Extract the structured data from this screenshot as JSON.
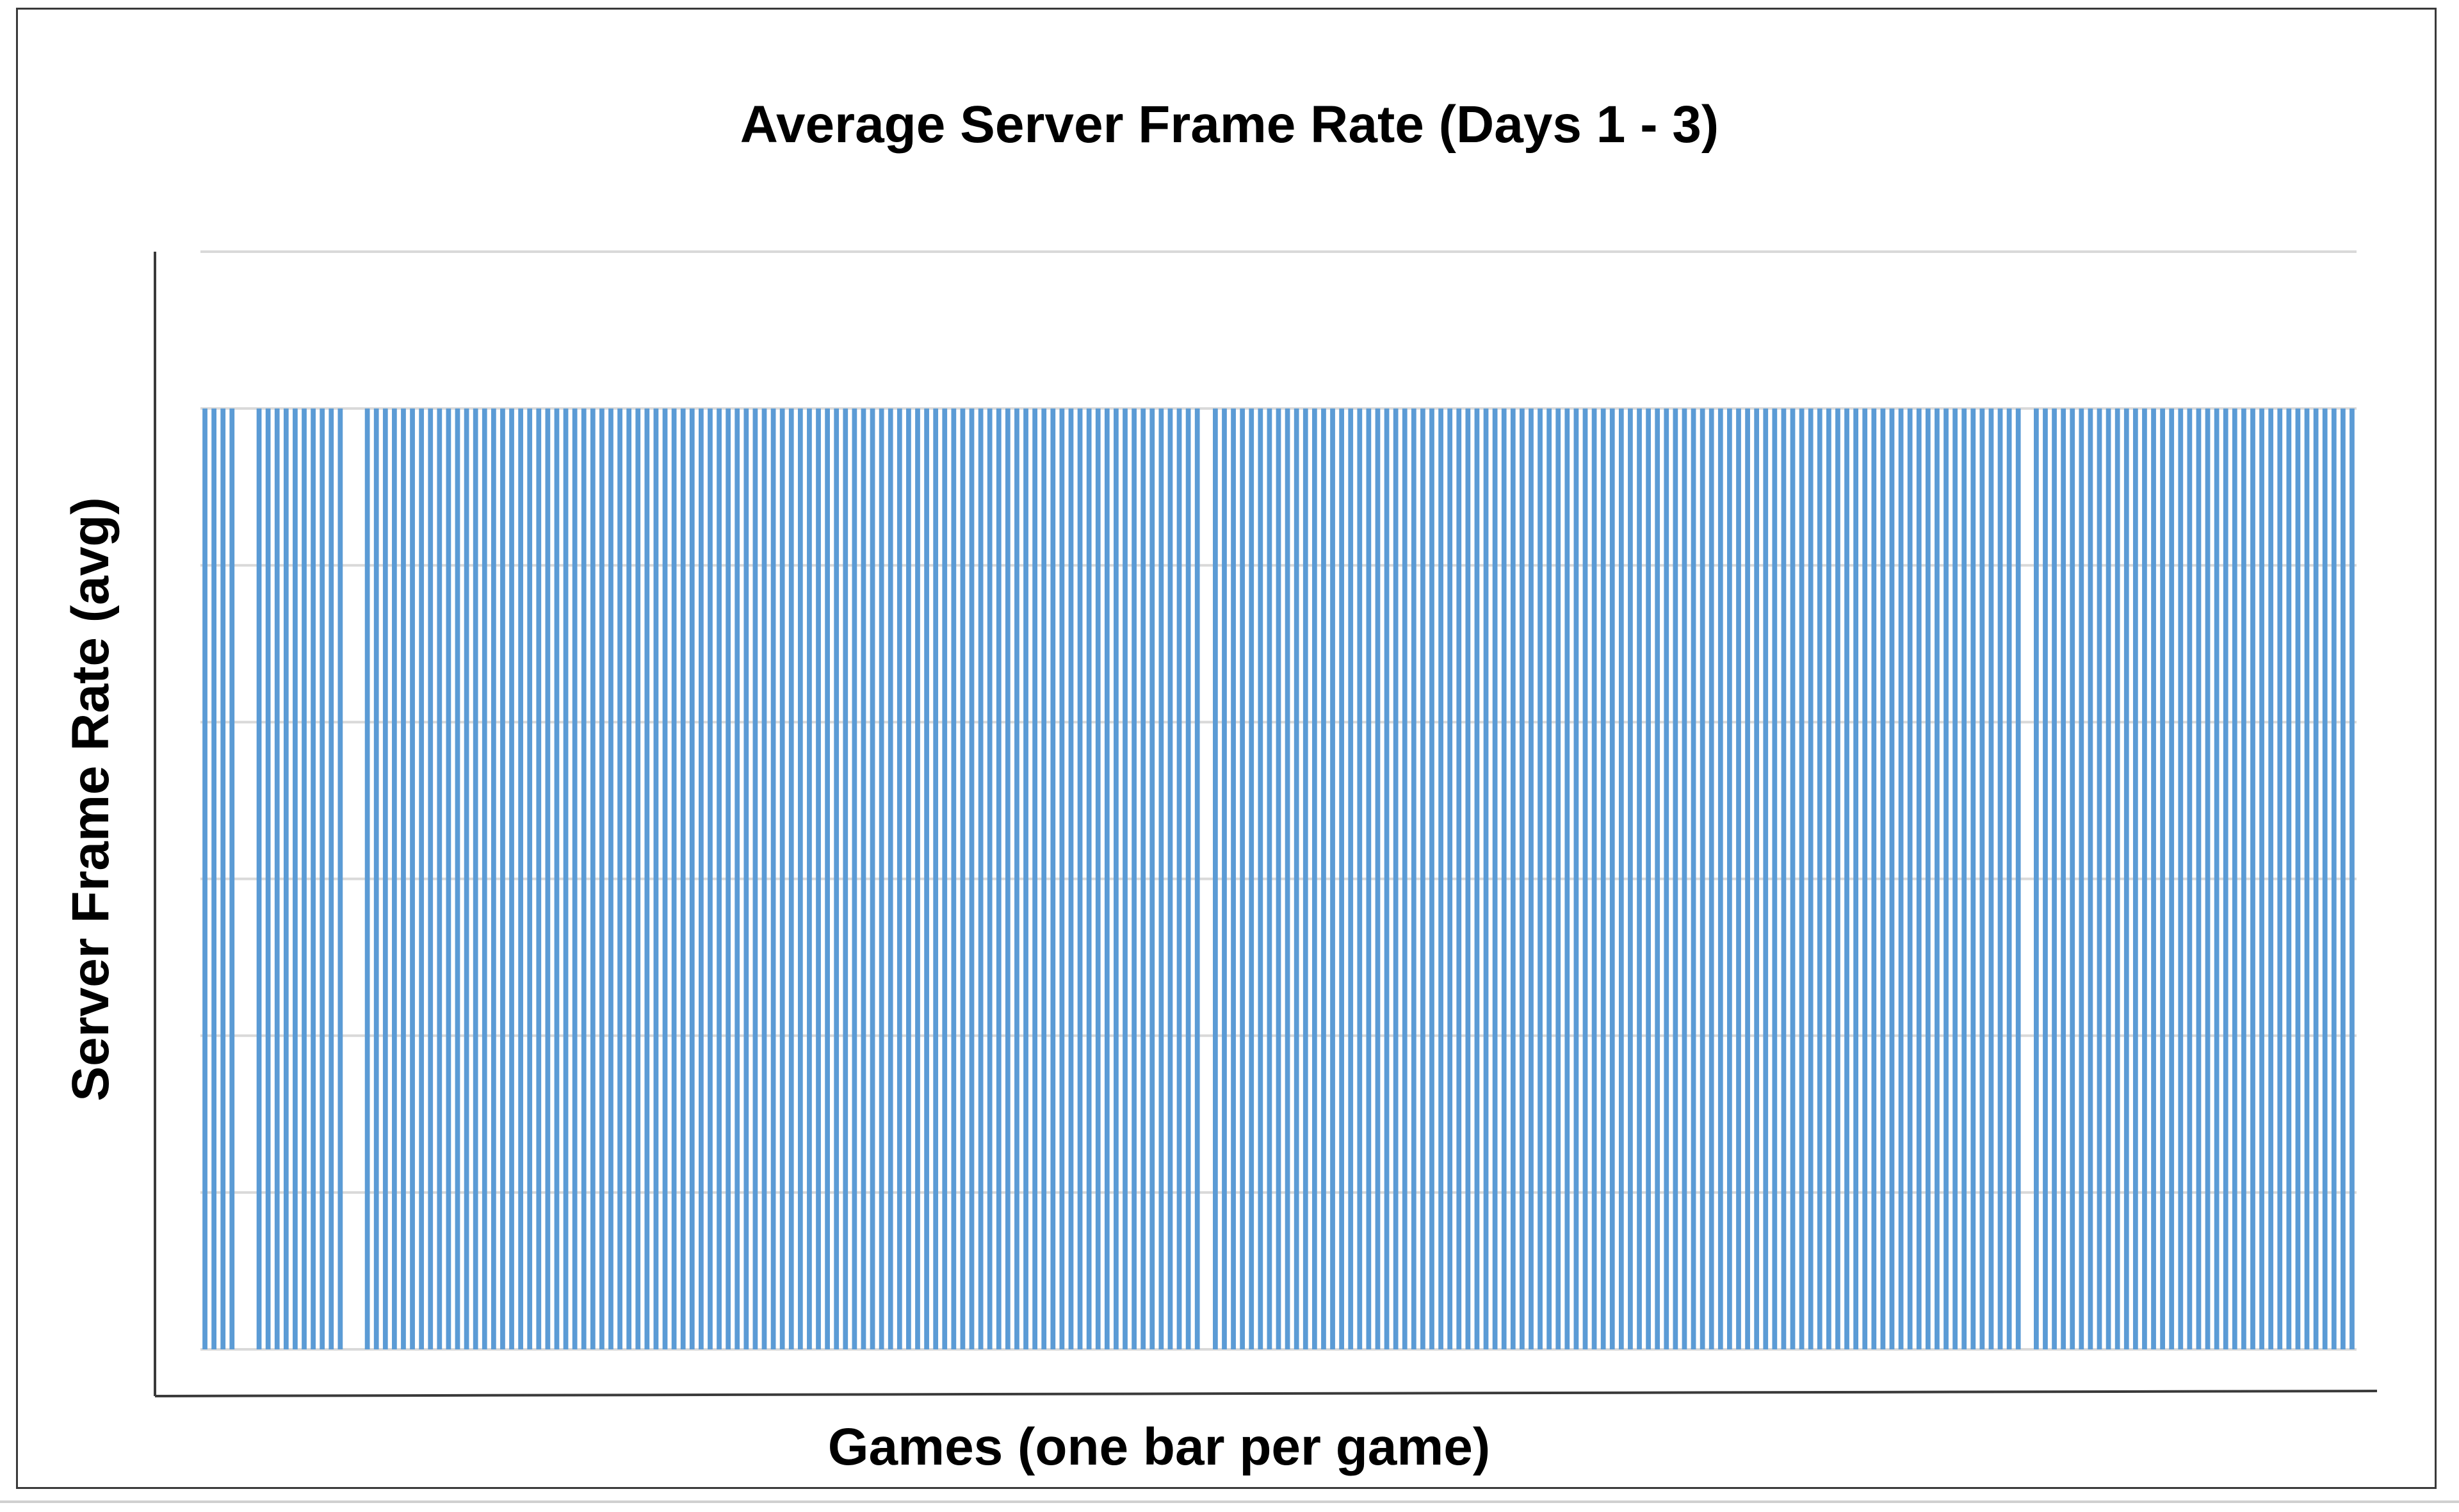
{
  "chart_data": {
    "type": "bar",
    "title": "Average Server Frame Rate (Days 1 - 3)",
    "xlabel": "Games (one bar per game)",
    "ylabel": "Server Frame Rate (avg)",
    "ylim": [
      0,
      35
    ],
    "grid": true,
    "legend": "none",
    "bar_color": "#5b9bd5",
    "tick_labels_shown": false,
    "values": [
      30,
      30,
      30,
      30,
      0,
      0,
      30,
      30,
      30,
      30,
      30,
      30,
      30,
      30,
      30,
      30,
      0,
      0,
      30,
      30,
      30,
      30,
      30,
      30,
      30,
      30,
      30,
      30,
      30,
      30,
      30,
      30,
      30,
      30,
      30,
      30,
      30,
      30,
      30,
      30,
      30,
      30,
      30,
      30,
      30,
      30,
      30,
      30,
      30,
      30,
      30,
      30,
      30,
      30,
      30,
      30,
      30,
      30,
      30,
      30,
      30,
      30,
      30,
      30,
      30,
      30,
      30,
      30,
      30,
      30,
      30,
      30,
      30,
      30,
      30,
      30,
      30,
      30,
      30,
      30,
      30,
      30,
      30,
      30,
      30,
      30,
      30,
      30,
      30,
      30,
      30,
      30,
      30,
      30,
      30,
      30,
      30,
      30,
      30,
      30,
      30,
      30,
      30,
      30,
      30,
      30,
      30,
      30,
      30,
      30,
      30,
      0,
      30,
      30,
      30,
      30,
      30,
      30,
      30,
      30,
      30,
      30,
      30,
      30,
      30,
      30,
      30,
      30,
      30,
      30,
      30,
      30,
      30,
      30,
      30,
      30,
      30,
      30,
      30,
      30,
      30,
      30,
      30,
      30,
      30,
      30,
      30,
      30,
      30,
      30,
      30,
      30,
      30,
      30,
      30,
      30,
      30,
      30,
      30,
      30,
      30,
      30,
      30,
      30,
      30,
      30,
      30,
      30,
      30,
      30,
      30,
      30,
      30,
      30,
      30,
      30,
      30,
      30,
      30,
      30,
      30,
      30,
      30,
      30,
      30,
      30,
      30,
      30,
      30,
      30,
      30,
      30,
      30,
      30,
      30,
      30,
      30,
      30,
      30,
      30,
      30,
      30,
      0,
      30,
      30,
      30,
      30,
      30,
      30,
      30,
      30,
      30,
      30,
      30,
      30,
      30,
      30,
      30,
      30,
      30,
      30,
      30,
      30,
      30,
      30,
      30,
      30,
      30,
      30,
      30,
      30,
      30,
      30,
      30,
      30,
      30,
      30,
      30,
      30
    ]
  }
}
